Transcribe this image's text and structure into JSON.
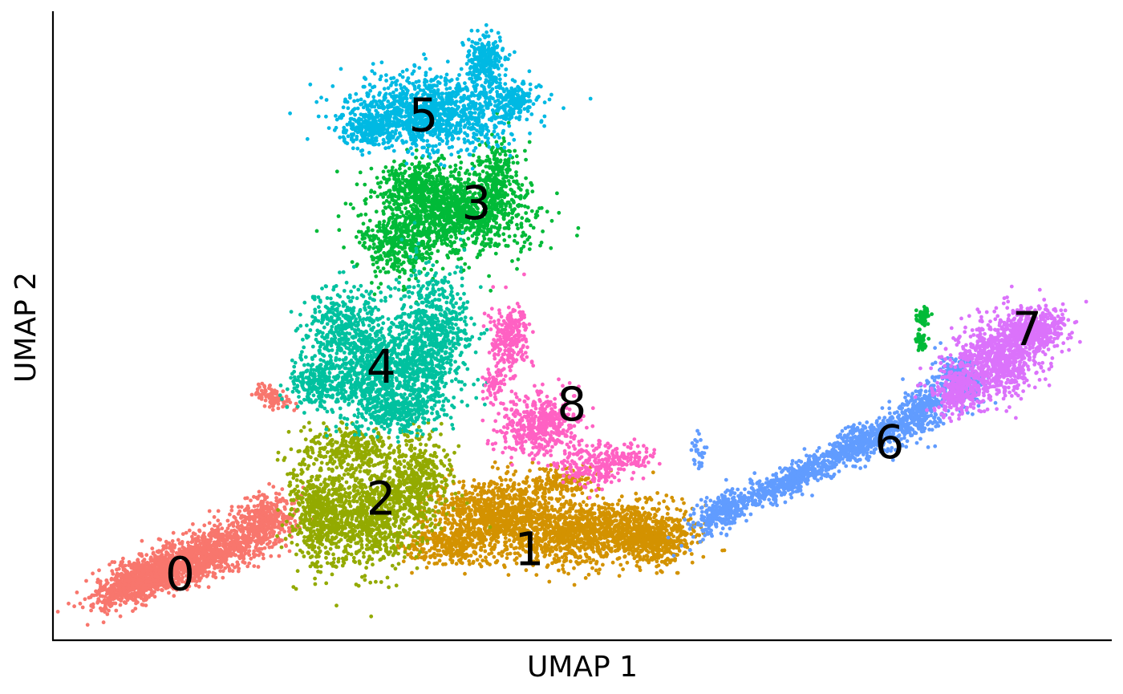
{
  "chart_data": {
    "type": "scatter",
    "xlabel": "UMAP 1",
    "ylabel": "UMAP 2",
    "grid": false,
    "legend": "none",
    "xlim": [
      0,
      100
    ],
    "ylim": [
      0,
      100
    ],
    "series": [
      {
        "cluster": "0",
        "color": "#F8766D",
        "centroid": [
          12,
          10
        ],
        "label_pos": [
          12,
          10
        ]
      },
      {
        "cluster": "1",
        "color": "#D39200",
        "centroid": [
          45,
          15
        ],
        "label_pos": [
          45,
          14
        ]
      },
      {
        "cluster": "2",
        "color": "#93AA00",
        "centroid": [
          31,
          22
        ],
        "label_pos": [
          31,
          22
        ]
      },
      {
        "cluster": "3",
        "color": "#00BA38",
        "centroid": [
          40,
          67
        ],
        "label_pos": [
          40,
          69
        ]
      },
      {
        "cluster": "4",
        "color": "#00C19F",
        "centroid": [
          33,
          44
        ],
        "label_pos": [
          31,
          43
        ]
      },
      {
        "cluster": "5",
        "color": "#00B9E3",
        "centroid": [
          36,
          82
        ],
        "label_pos": [
          35,
          83
        ]
      },
      {
        "cluster": "6",
        "color": "#619CFF",
        "centroid": [
          72,
          30
        ],
        "label_pos": [
          79,
          31
        ]
      },
      {
        "cluster": "7",
        "color": "#DB72FB",
        "centroid": [
          92,
          48
        ],
        "label_pos": [
          92,
          49
        ]
      },
      {
        "cluster": "8",
        "color": "#FF61C3",
        "centroid": [
          47,
          36
        ],
        "label_pos": [
          49,
          37
        ]
      }
    ]
  }
}
